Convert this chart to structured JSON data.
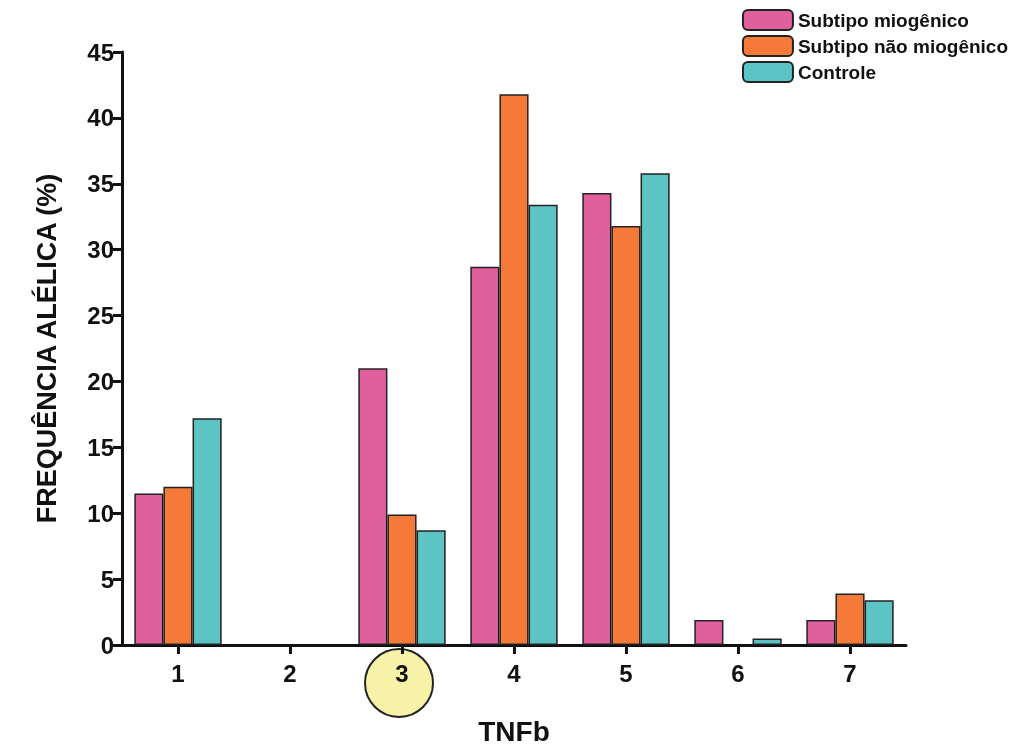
{
  "chart_data": {
    "type": "bar",
    "xlabel": "TNFb",
    "ylabel": "FREQUÊNCIA ALÉLICA (%)",
    "categories": [
      "1",
      "2",
      "3",
      "4",
      "5",
      "6",
      "7"
    ],
    "series": [
      {
        "name": "Subtipo miogênico",
        "color": "#e0609e",
        "values": [
          11.5,
          0,
          21,
          28.7,
          34.3,
          1.9,
          1.9
        ]
      },
      {
        "name": "Subtipo não miogênico",
        "color": "#f57a3a",
        "values": [
          12,
          0,
          9.9,
          41.8,
          31.8,
          0,
          3.9
        ]
      },
      {
        "name": "Controle",
        "color": "#5cc4c4",
        "values": [
          17.2,
          0,
          8.7,
          33.4,
          35.8,
          0.5,
          3.4
        ]
      }
    ],
    "ylim": [
      0,
      45
    ],
    "yticks": [
      0,
      5,
      10,
      15,
      20,
      25,
      30,
      35,
      40,
      45
    ],
    "grid": false,
    "legend": "top right"
  }
}
